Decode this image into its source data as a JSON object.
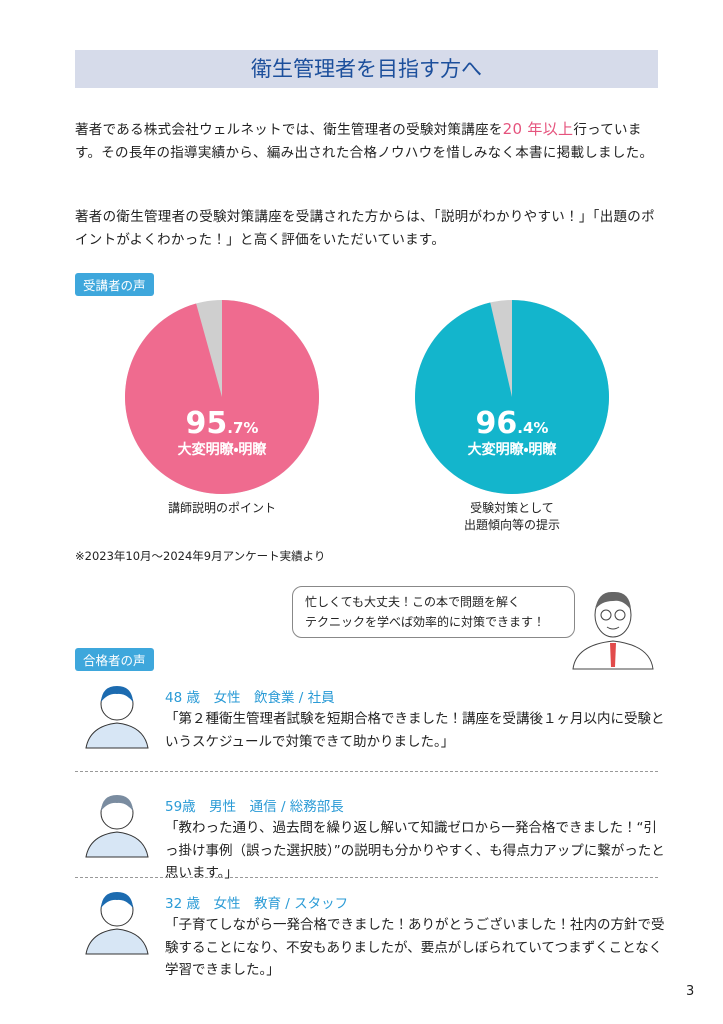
{
  "header": {
    "title": "衛生管理者を目指す方へ"
  },
  "intro": {
    "paragraph1": [
      "著者である株式会社ウェルネットでは、衛生管理者の受験対策講座を",
      "20 年以上",
      "行っています。その長年の指導実績から、編み出された合格ノウハウを惜しみなく本書に掲載しました。"
    ],
    "paragraph2": "著者の衛生管理者の受験対策講座を受講された方からは、「説明がわかりやすい！」「出題のポイントがよくわかった！」と高く評価をいただいています。"
  },
  "survey": {
    "badge": "受講者の声",
    "pies": [
      {
        "value": 95.7,
        "value_label": "95.7%",
        "label": "大変明瞭・明瞭",
        "caption": [
          "講師説明のポイント"
        ],
        "color": "#ef6b8f"
      },
      {
        "value": 96.4,
        "value_label": "96.4%",
        "label": "大変明瞭・明瞭",
        "caption": [
          "受験対策として",
          "出題傾向等の提示"
        ],
        "color": "#13b5cc"
      }
    ],
    "note": "※2023年10月～2024年9月アンケート実績より"
  },
  "speech": [
    "忙しくても大丈夫！この本で問題を解く",
    "テクニックを学べば効率的に対策できます！"
  ],
  "testimonials": {
    "badge": "合格者の声",
    "items": [
      {
        "heading": "48 歳　女性　飲食業 / 社員",
        "text": "「第２種衛生管理者試験を短期合格できました！講座を受講後１ヶ月以内に受験というスケジュールで対策できて助かりました。」"
      },
      {
        "heading": "59歳　男性　通信 / 総務部長",
        "text": "「教わった通り、過去問を繰り返し解いて知識ゼロから一発合格できました！“引っ掛け事例（誤った選択肢）”の説明も分かりやすく、も得点力アップに繋がったと思います。」"
      },
      {
        "heading": "32 歳　女性　教育 / スタッフ",
        "text": "「子育てしながら一発合格できました！ありがとうございました！社内の方針で受験することになり、不安もありましたが、要点がしぼられていてつまずくことなく学習できました。」"
      }
    ]
  },
  "page_number": "3"
}
